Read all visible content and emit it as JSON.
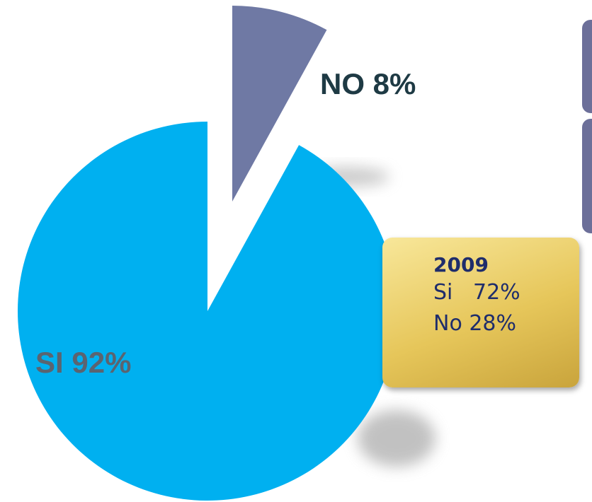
{
  "chart_data": {
    "type": "pie",
    "values": [
      92,
      8
    ],
    "value_labels": [
      "SI 92%",
      "NO 8%"
    ],
    "colors": [
      "#00b0f0",
      "#6f79a4"
    ],
    "label_colors": [
      "#5b6470",
      "#1e3a44"
    ]
  },
  "note": {
    "title": "2009",
    "rows": [
      "Si   72%",
      "No 28%"
    ]
  }
}
